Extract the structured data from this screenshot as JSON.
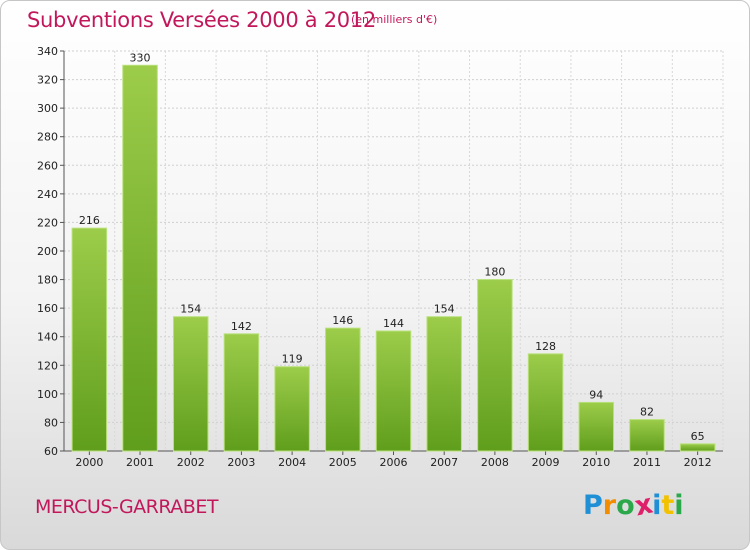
{
  "header": {
    "title": "Subventions Versées 2000 à 2012",
    "subtitle": "(en milliers d'€)"
  },
  "footer": {
    "place": "MERCUS-GARRABET",
    "logo_letters": [
      "P",
      "r",
      "o",
      "x",
      "i",
      "t",
      "i"
    ],
    "logo_colors": [
      "#1f8fd6",
      "#f28c00",
      "#2aa84a",
      "#e01f6b",
      "#1f8fd6",
      "#f2c200",
      "#2aa84a"
    ]
  },
  "chart_data": {
    "type": "bar",
    "title": "Subventions Versées 2000 à 2012",
    "subtitle": "(en milliers d'€)",
    "xlabel": "",
    "ylabel": "",
    "categories": [
      "2000",
      "2001",
      "2002",
      "2003",
      "2004",
      "2005",
      "2006",
      "2007",
      "2008",
      "2009",
      "2010",
      "2011",
      "2012"
    ],
    "values": [
      216,
      330,
      154,
      142,
      119,
      146,
      144,
      154,
      180,
      128,
      94,
      82,
      65
    ],
    "ylim": [
      60,
      340
    ],
    "yticks": [
      60,
      80,
      100,
      120,
      140,
      160,
      180,
      200,
      220,
      240,
      260,
      280,
      300,
      320,
      340
    ],
    "grid": true,
    "bar_color_top": "#9ccc4a",
    "bar_color_bottom": "#5f9e1c"
  }
}
